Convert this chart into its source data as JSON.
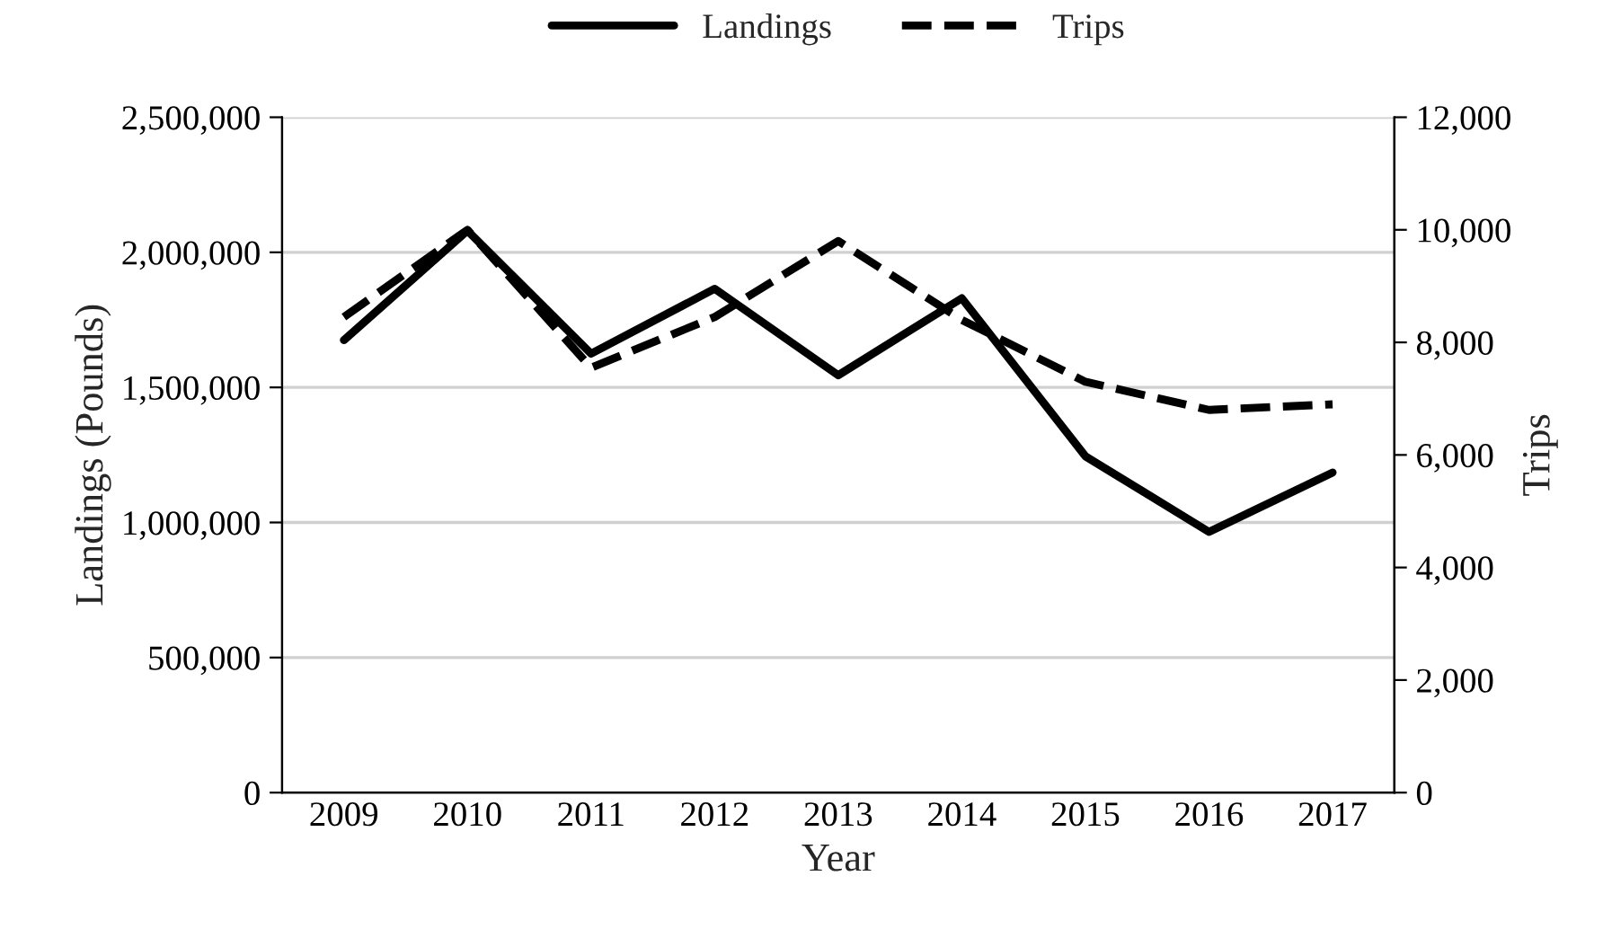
{
  "chart_data": {
    "type": "line",
    "xlabel": "Year",
    "ylabel": "Landings (Pounds)",
    "y2label": "Trips",
    "categories": [
      "2009",
      "2010",
      "2011",
      "2012",
      "2013",
      "2014",
      "2015",
      "2016",
      "2017"
    ],
    "series": [
      {
        "name": "Landings",
        "color": "#000000",
        "line_style": "solid",
        "values": [
          1675000,
          2080000,
          1625000,
          1865000,
          1545000,
          1830000,
          1245000,
          965000,
          1185000
        ]
      },
      {
        "name": "Trips",
        "color": "#000000",
        "line_style": "dashed",
        "axis": "y2",
        "values": [
          8450,
          10000,
          7550,
          8450,
          9800,
          8400,
          7300,
          6800,
          6900
        ]
      }
    ],
    "ylim": [
      0,
      2500000
    ],
    "yticks": [
      {
        "value": 0,
        "label": "0"
      },
      {
        "value": 500000,
        "label": "500,000"
      },
      {
        "value": 1000000,
        "label": "1,000,000"
      },
      {
        "value": 1500000,
        "label": "1,500,000"
      },
      {
        "value": 2000000,
        "label": "2,000,000"
      },
      {
        "value": 2500000,
        "label": "2,500,000"
      }
    ],
    "y2lim": [
      0,
      12000
    ],
    "y2ticks": [
      {
        "value": 0,
        "label": "0"
      },
      {
        "value": 2000,
        "label": "2,000"
      },
      {
        "value": 4000,
        "label": "4,000"
      },
      {
        "value": 6000,
        "label": "6,000"
      },
      {
        "value": 8000,
        "label": "8,000"
      },
      {
        "value": 10000,
        "label": "10,000"
      },
      {
        "value": 12000,
        "label": "12,000"
      }
    ],
    "grid": "y",
    "legend": "top",
    "marker": "none"
  }
}
